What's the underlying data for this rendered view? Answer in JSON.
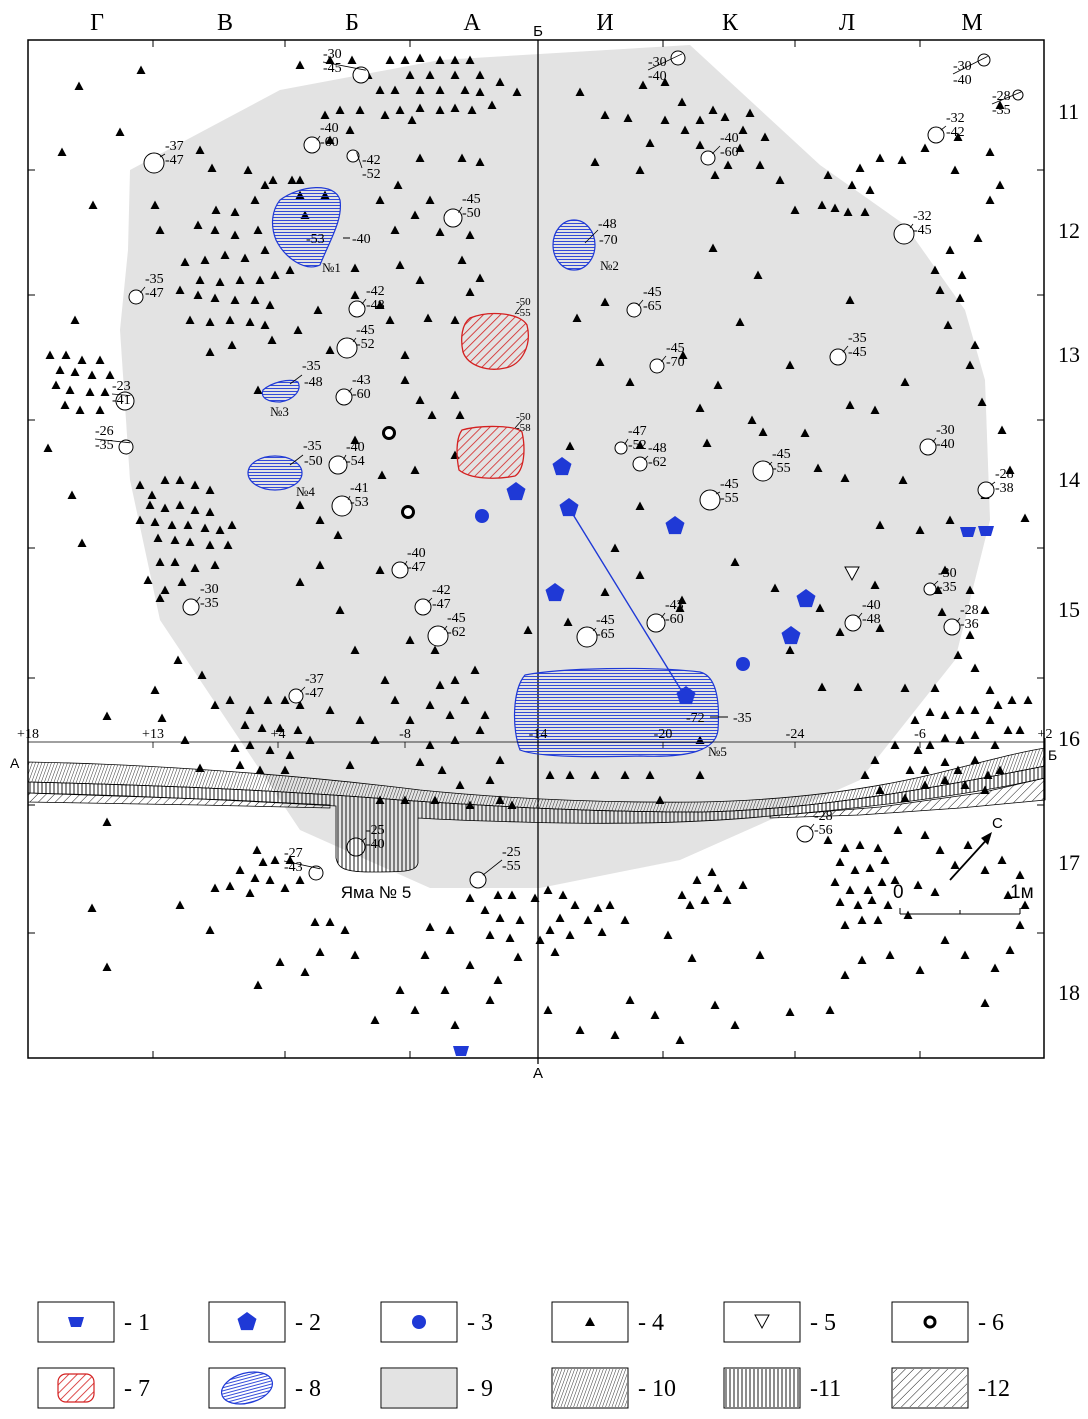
{
  "plan": {
    "columns": [
      "Г",
      "В",
      "Б",
      "А",
      "И",
      "К",
      "Л",
      "М"
    ],
    "rows": [
      "11",
      "12",
      "13",
      "14",
      "15",
      "16",
      "17",
      "18"
    ],
    "section_top_label": "Б",
    "section_bottom_label": "А"
  },
  "pits": [
    {
      "label": "№1",
      "top": "-53",
      "bottom": "-40"
    },
    {
      "label": "№2",
      "top": "-48",
      "bottom": "-70"
    },
    {
      "label": "№3",
      "top": "-35",
      "bottom": "-48"
    },
    {
      "label": "№4",
      "top": "-35",
      "bottom": "-50"
    },
    {
      "label": "№5",
      "top": "-72",
      "bottom": "-35"
    }
  ],
  "hearths": [
    {
      "top": "-50",
      "bottom": "-55"
    },
    {
      "top": "-50",
      "bottom": "-58"
    }
  ],
  "depth_marks": [
    [
      "-30",
      "-45"
    ],
    [
      "-37",
      "-47"
    ],
    [
      "-40",
      "-60"
    ],
    [
      "-42",
      "-52"
    ],
    [
      "-45",
      "-50"
    ],
    [
      "-35",
      "-47"
    ],
    [
      "-42",
      "-48"
    ],
    [
      "-45",
      "-52"
    ],
    [
      "-23",
      "-41"
    ],
    [
      "-43",
      "-60"
    ],
    [
      "-26",
      "-35"
    ],
    [
      "-40",
      "-54"
    ],
    [
      "-41",
      "-53"
    ],
    [
      "-40",
      "-47"
    ],
    [
      "-30",
      "-35"
    ],
    [
      "-42",
      "-47"
    ],
    [
      "-45",
      "-62"
    ],
    [
      "-37",
      "-47"
    ],
    [
      "-25",
      "-40"
    ],
    [
      "-27",
      "-43"
    ],
    [
      "-25",
      "-55"
    ],
    [
      "-30",
      "-40"
    ],
    [
      "-40",
      "-60"
    ],
    [
      "-45",
      "-65"
    ],
    [
      "-45",
      "-70"
    ],
    [
      "-47",
      "-52"
    ],
    [
      "-48",
      "-62"
    ],
    [
      "-45",
      "-55"
    ],
    [
      "-45",
      "-55"
    ],
    [
      "-43",
      "-60"
    ],
    [
      "-45",
      "-65"
    ],
    [
      "-28",
      "-56"
    ],
    [
      "-30",
      "-40"
    ],
    [
      "-28",
      "-35"
    ],
    [
      "-32",
      "-42"
    ],
    [
      "-32",
      "-45"
    ],
    [
      "-35",
      "-45"
    ],
    [
      "-30",
      "-40"
    ],
    [
      "-28",
      "-38"
    ],
    [
      "-30",
      "-35"
    ],
    [
      "-40",
      "-48"
    ],
    [
      "-28",
      "-36"
    ]
  ],
  "profile": {
    "ticks": [
      "+18",
      "+13",
      "+4",
      "-8",
      "-14",
      "-20",
      "-24",
      "-6",
      "+2"
    ],
    "left_label": "А",
    "right_label": "Б",
    "pit_label": "Яма № 5",
    "north_label": "С",
    "scale": {
      "start": "0",
      "end": "1м"
    }
  },
  "legend": [
    {
      "num": "- 1",
      "symbol": "trapezoid-blue"
    },
    {
      "num": "- 2",
      "symbol": "pentagon-blue"
    },
    {
      "num": "- 3",
      "symbol": "circle-blue"
    },
    {
      "num": "- 4",
      "symbol": "triangle-black"
    },
    {
      "num": "- 5",
      "symbol": "triangle-outline"
    },
    {
      "num": "- 6",
      "symbol": "ring-black"
    },
    {
      "num": "- 7",
      "symbol": "red-hatched-blob"
    },
    {
      "num": "- 8",
      "symbol": "blue-hatched-ellipse"
    },
    {
      "num": "- 9",
      "symbol": "grey-fill"
    },
    {
      "num": "- 10",
      "symbol": "dense-hatch"
    },
    {
      "num": "-11",
      "symbol": "vertical-lines"
    },
    {
      "num": "-12",
      "symbol": "diagonal-hatch"
    }
  ],
  "colors": {
    "blue": "#1f39d6",
    "red": "#d42020",
    "grey": "#e3e3e3",
    "black": "#000000"
  }
}
